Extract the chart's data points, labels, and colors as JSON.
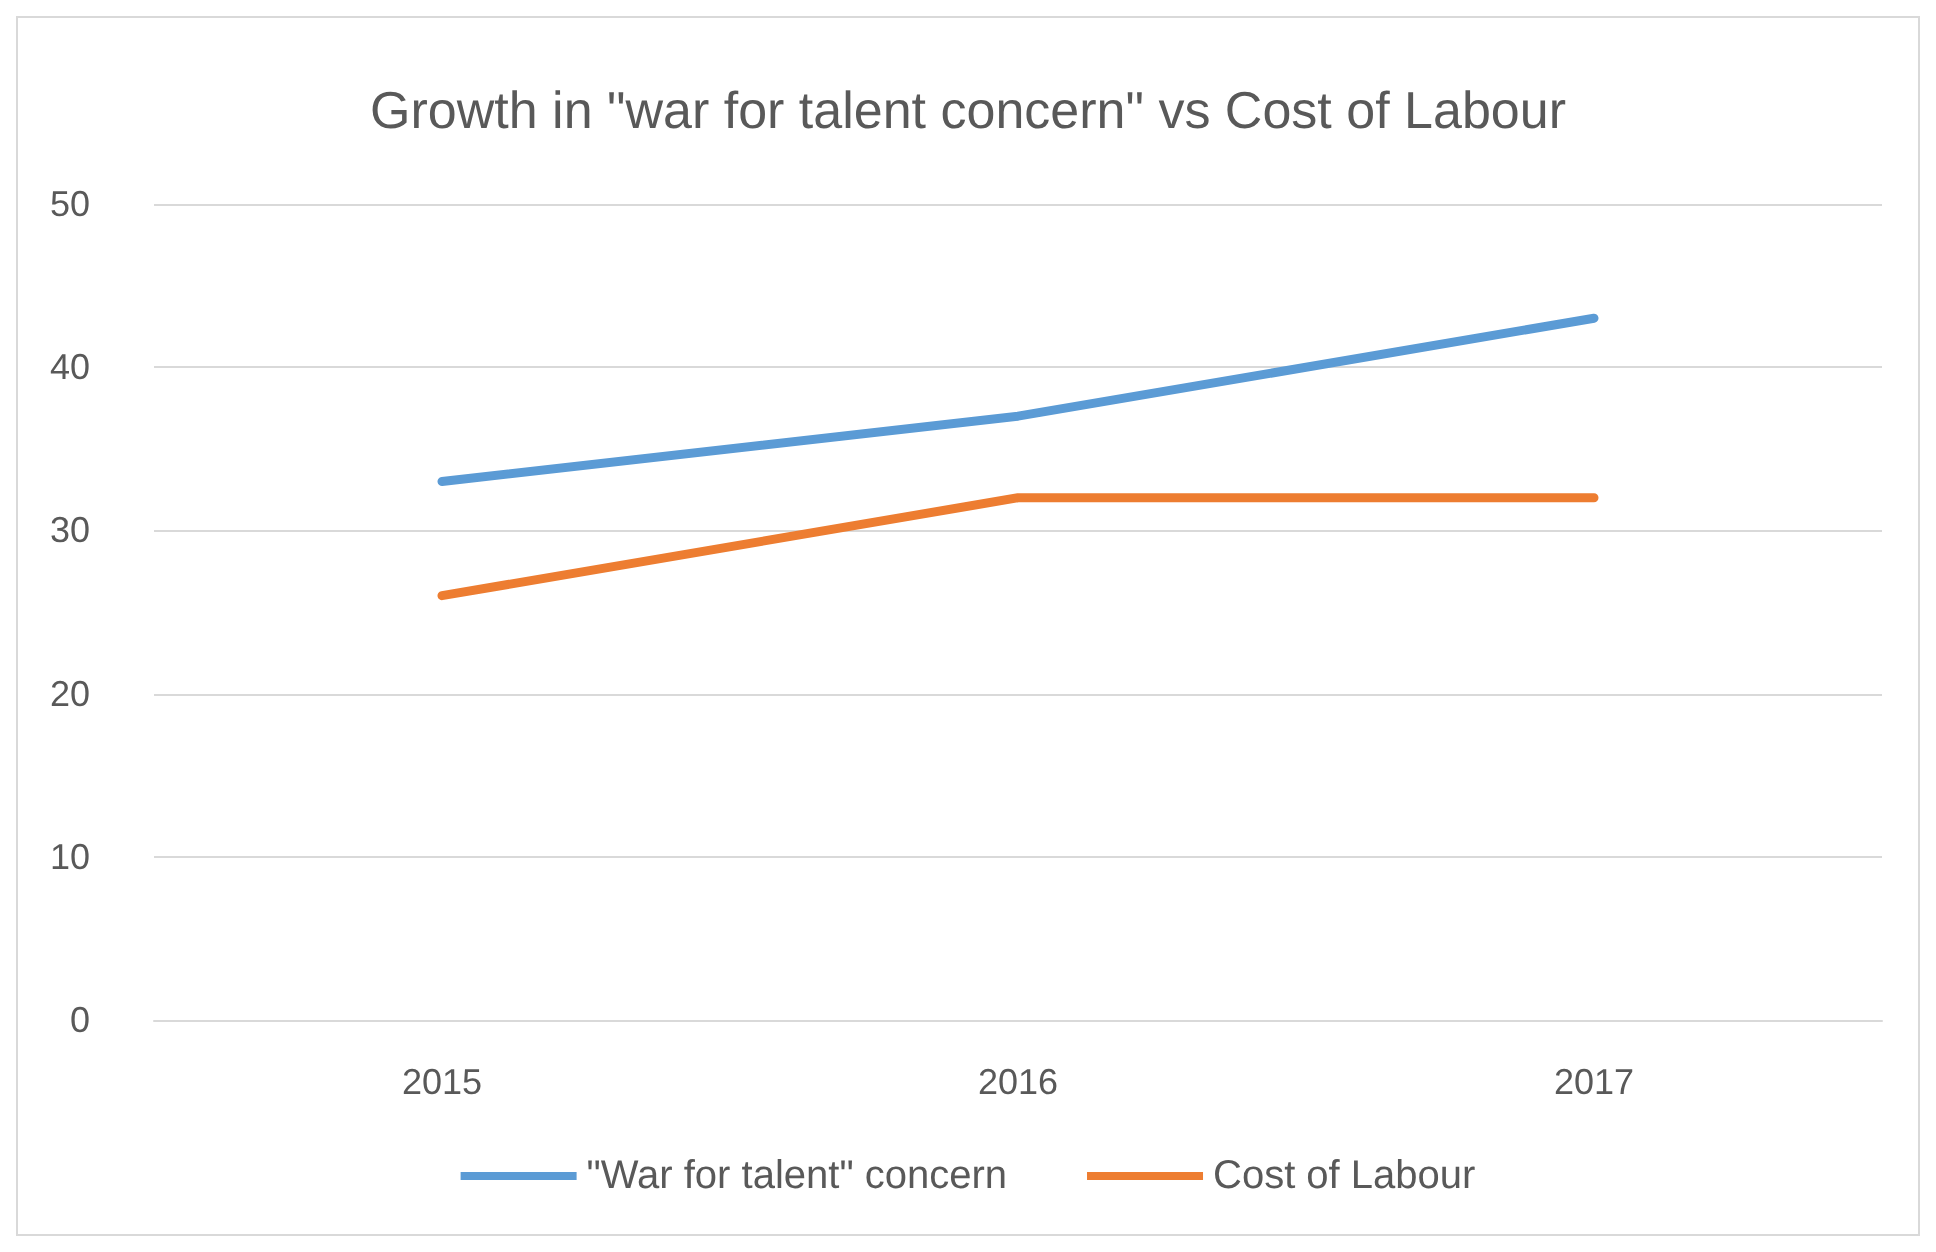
{
  "chart_data": {
    "type": "line",
    "title": "Growth in \"war for talent concern\" vs Cost of Labour",
    "categories": [
      "2015",
      "2016",
      "2017"
    ],
    "series": [
      {
        "name": "\"War for talent\" concern",
        "color": "#5b9bd5",
        "values": [
          33,
          37,
          43
        ]
      },
      {
        "name": "Cost of Labour",
        "color": "#ed7d31",
        "values": [
          26,
          32,
          32
        ]
      }
    ],
    "ylim": [
      0,
      50
    ],
    "yticks": [
      0,
      10,
      20,
      30,
      40,
      50
    ],
    "grid": "y",
    "legend": "bottom",
    "marker": "none"
  }
}
